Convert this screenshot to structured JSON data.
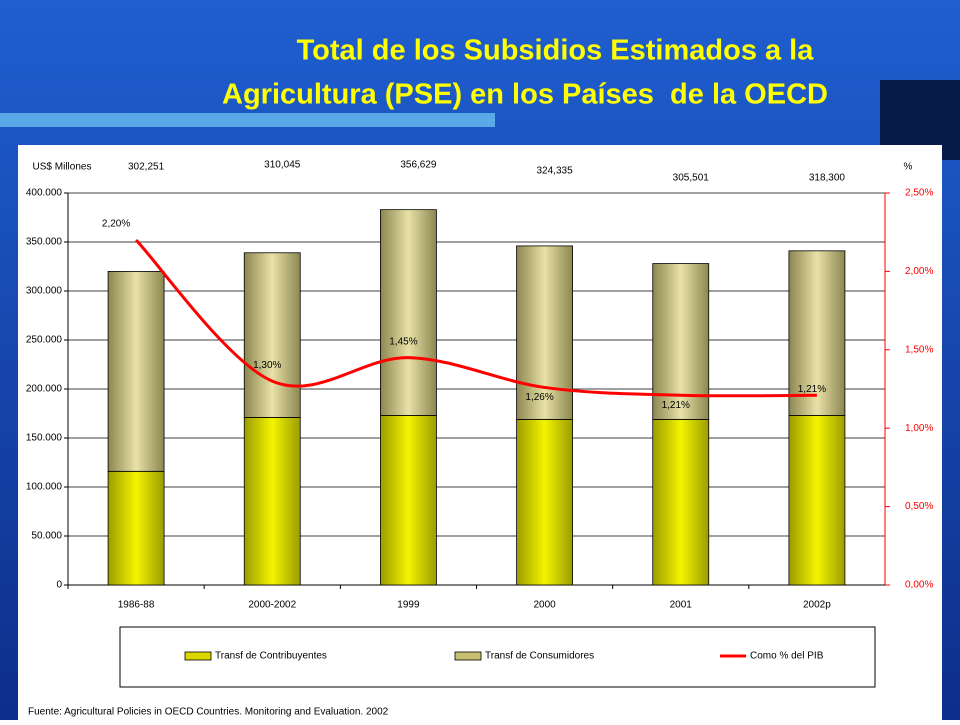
{
  "chart_data": {
    "type": "bar",
    "title": "Total de los Subsidios Estimados a la Agricultura (PSE) en los Países  de la OECD",
    "y_label": "US$ Millones",
    "y2_label": "%",
    "categories": [
      "1986-88",
      "2000-2002",
      "1999",
      "2000",
      "2001",
      "2002p"
    ],
    "series": [
      {
        "name": "Transf de Contribuyentes",
        "color": "#d8d800",
        "values": [
          116000,
          171000,
          173000,
          169000,
          169000,
          173000
        ]
      },
      {
        "name": "Transf de Consumidores",
        "color": "#c8c070",
        "values": [
          204000,
          168000,
          210000,
          177000,
          159000,
          168000
        ]
      },
      {
        "name": "Como % del PIB",
        "color": "#ff0000",
        "axis": "y2",
        "type": "line",
        "values": [
          2.2,
          1.3,
          1.45,
          1.26,
          1.21,
          1.21
        ],
        "value_labels": [
          "2,20%",
          "1,30%",
          "1,45%",
          "1,26%",
          "1,21%",
          "1,21%"
        ]
      }
    ],
    "annotations": [
      "302,251",
      "310,045",
      "356,629",
      "324,335",
      "305,501",
      "318,300"
    ],
    "ylim": [
      0,
      400000
    ],
    "yticks": [
      0,
      {
        "value": 50000,
        "label": "50.000"
      },
      {
        "value": 100000,
        "label": "100.000"
      },
      {
        "value": 150000,
        "label": "150.000"
      },
      {
        "value": 200000,
        "label": "200.000"
      },
      {
        "value": 250000,
        "label": "250.000"
      },
      {
        "value": 300000,
        "label": "300.000"
      },
      {
        "value": 350000,
        "label": "350.000"
      },
      {
        "value": 400000,
        "label": "400.000"
      }
    ],
    "y2lim": [
      0,
      2.5
    ],
    "y2ticks": [
      {
        "value": 0,
        "label": "0,00%"
      },
      {
        "value": 0.5,
        "label": "0,50%"
      },
      {
        "value": 1,
        "label": "1,00%"
      },
      {
        "value": 1.5,
        "label": "1,50%"
      },
      {
        "value": 2,
        "label": "2,00%"
      },
      {
        "value": 2.5,
        "label": "2,50%"
      }
    ],
    "grid": true,
    "legend": "bottom",
    "source": "Fuente: Agricultural Policies in OECD Countries. Monitoring and Evaluation. 2002"
  }
}
